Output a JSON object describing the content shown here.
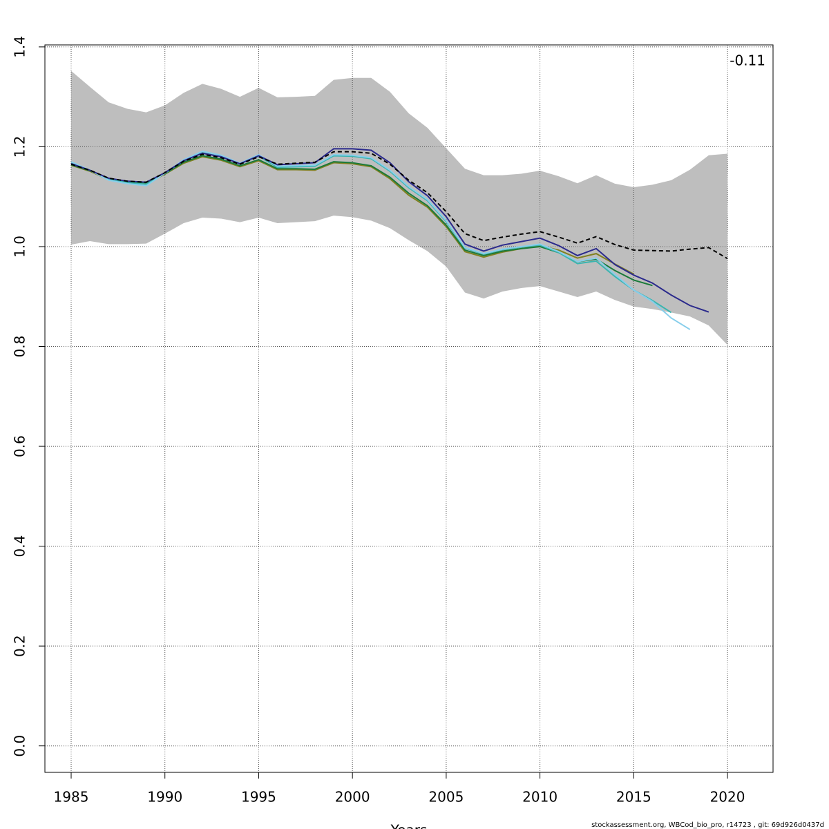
{
  "chart_data": {
    "type": "line",
    "x": [
      1985,
      1986,
      1987,
      1988,
      1989,
      1990,
      1991,
      1992,
      1993,
      1994,
      1995,
      1996,
      1997,
      1998,
      1999,
      2000,
      2001,
      2002,
      2003,
      2004,
      2005,
      2006,
      2007,
      2008,
      2009,
      2010,
      2011,
      2012,
      2013,
      2014,
      2015,
      2016,
      2017,
      2018,
      2019,
      2020
    ],
    "xlim": [
      1983.6,
      2022.43
    ],
    "ylim": [
      -0.053,
      1.404
    ],
    "xticks": [
      1985,
      1990,
      1995,
      2000,
      2005,
      2010,
      2015,
      2020
    ],
    "yticks": [
      {
        "value": 0,
        "label": "0.0"
      },
      0.2,
      0.4,
      0.6,
      0.8,
      {
        "value": 1,
        "label": "1.0"
      },
      1.2,
      1.4
    ],
    "xlabel": "Years",
    "annotation": "-0.11",
    "footer": "stockassessment.org, WBCod_bio_pro, r14723 , git: 69d926d0437d",
    "grid": true,
    "band": {
      "color": "#bebebe",
      "upper": [
        1.352,
        1.32,
        1.289,
        1.276,
        1.269,
        1.283,
        1.308,
        1.326,
        1.316,
        1.3,
        1.318,
        1.299,
        1.3,
        1.302,
        1.334,
        1.338,
        1.338,
        1.31,
        1.267,
        1.238,
        1.197,
        1.156,
        1.143,
        1.143,
        1.146,
        1.152,
        1.141,
        1.127,
        1.143,
        1.126,
        1.119,
        1.124,
        1.133,
        1.154,
        1.183,
        1.186
      ],
      "lower": [
        1.004,
        1.011,
        1.005,
        1.005,
        1.006,
        1.026,
        1.047,
        1.058,
        1.056,
        1.049,
        1.058,
        1.047,
        1.049,
        1.051,
        1.062,
        1.059,
        1.052,
        1.037,
        1.013,
        0.991,
        0.96,
        0.908,
        0.896,
        0.91,
        0.917,
        0.921,
        0.91,
        0.899,
        0.91,
        0.893,
        0.88,
        0.875,
        0.868,
        0.86,
        0.842,
        0.803
      ]
    },
    "series": [
      {
        "color": "#808020",
        "linestyle": "solid",
        "values": [
          1.163,
          1.151,
          1.134,
          1.128,
          1.126,
          1.145,
          1.167,
          1.18,
          1.173,
          1.16,
          1.172,
          1.154,
          1.154,
          1.153,
          1.168,
          1.166,
          1.16,
          1.136,
          1.103,
          1.079,
          1.04,
          0.99,
          0.979,
          0.989,
          0.996,
          1.002,
          0.993,
          0.977,
          0.986,
          0.965,
          0.945,
          null,
          null,
          null,
          null,
          null
        ]
      },
      {
        "color": "#1a7a3a",
        "linestyle": "solid",
        "values": [
          1.164,
          1.152,
          1.136,
          1.13,
          1.128,
          1.146,
          1.169,
          1.182,
          1.175,
          1.162,
          1.174,
          1.156,
          1.156,
          1.155,
          1.17,
          1.168,
          1.162,
          1.139,
          1.107,
          1.082,
          1.043,
          0.993,
          0.982,
          0.991,
          0.996,
          1.0,
          0.988,
          0.97,
          0.975,
          0.952,
          0.933,
          0.922,
          null,
          null,
          null,
          null
        ]
      },
      {
        "color": "#3ab5b0",
        "linestyle": "solid",
        "values": [
          1.167,
          1.153,
          1.135,
          1.128,
          1.125,
          1.147,
          1.172,
          1.188,
          1.18,
          1.166,
          1.181,
          1.159,
          1.16,
          1.161,
          1.182,
          1.181,
          1.176,
          1.151,
          1.118,
          1.092,
          1.05,
          0.997,
          0.985,
          0.994,
          0.999,
          1.003,
          0.988,
          0.966,
          0.971,
          0.94,
          0.913,
          0.892,
          0.868,
          null,
          null,
          null
        ]
      },
      {
        "color": "#87ceeb",
        "linestyle": "solid",
        "values": [
          1.17,
          1.153,
          1.133,
          1.126,
          1.122,
          1.147,
          1.174,
          1.191,
          1.183,
          1.167,
          1.184,
          1.161,
          1.162,
          1.163,
          1.184,
          1.183,
          1.178,
          1.153,
          1.12,
          1.094,
          1.052,
          0.998,
          0.986,
          0.995,
          1.0,
          1.005,
          0.99,
          0.97,
          0.977,
          0.944,
          0.913,
          0.89,
          0.857,
          0.834,
          null,
          null
        ]
      },
      {
        "color": "#2b2a8c",
        "linestyle": "solid",
        "values": [
          1.166,
          1.153,
          1.137,
          1.131,
          1.129,
          1.148,
          1.172,
          1.187,
          1.18,
          1.166,
          1.182,
          1.164,
          1.166,
          1.168,
          1.196,
          1.196,
          1.193,
          1.168,
          1.13,
          1.102,
          1.06,
          1.005,
          0.991,
          1.003,
          1.01,
          1.017,
          1.002,
          0.982,
          0.996,
          0.964,
          0.943,
          0.927,
          0.903,
          0.882,
          0.869,
          null
        ]
      },
      {
        "color": "#000000",
        "linestyle": "dashed",
        "values": [
          1.165,
          1.153,
          1.137,
          1.131,
          1.129,
          1.148,
          1.171,
          1.185,
          1.178,
          1.165,
          1.18,
          1.165,
          1.167,
          1.169,
          1.19,
          1.19,
          1.187,
          1.165,
          1.133,
          1.108,
          1.07,
          1.026,
          1.012,
          1.019,
          1.025,
          1.03,
          1.019,
          1.007,
          1.02,
          1.004,
          0.993,
          0.992,
          0.991,
          0.995,
          0.998,
          0.976
        ]
      }
    ]
  }
}
